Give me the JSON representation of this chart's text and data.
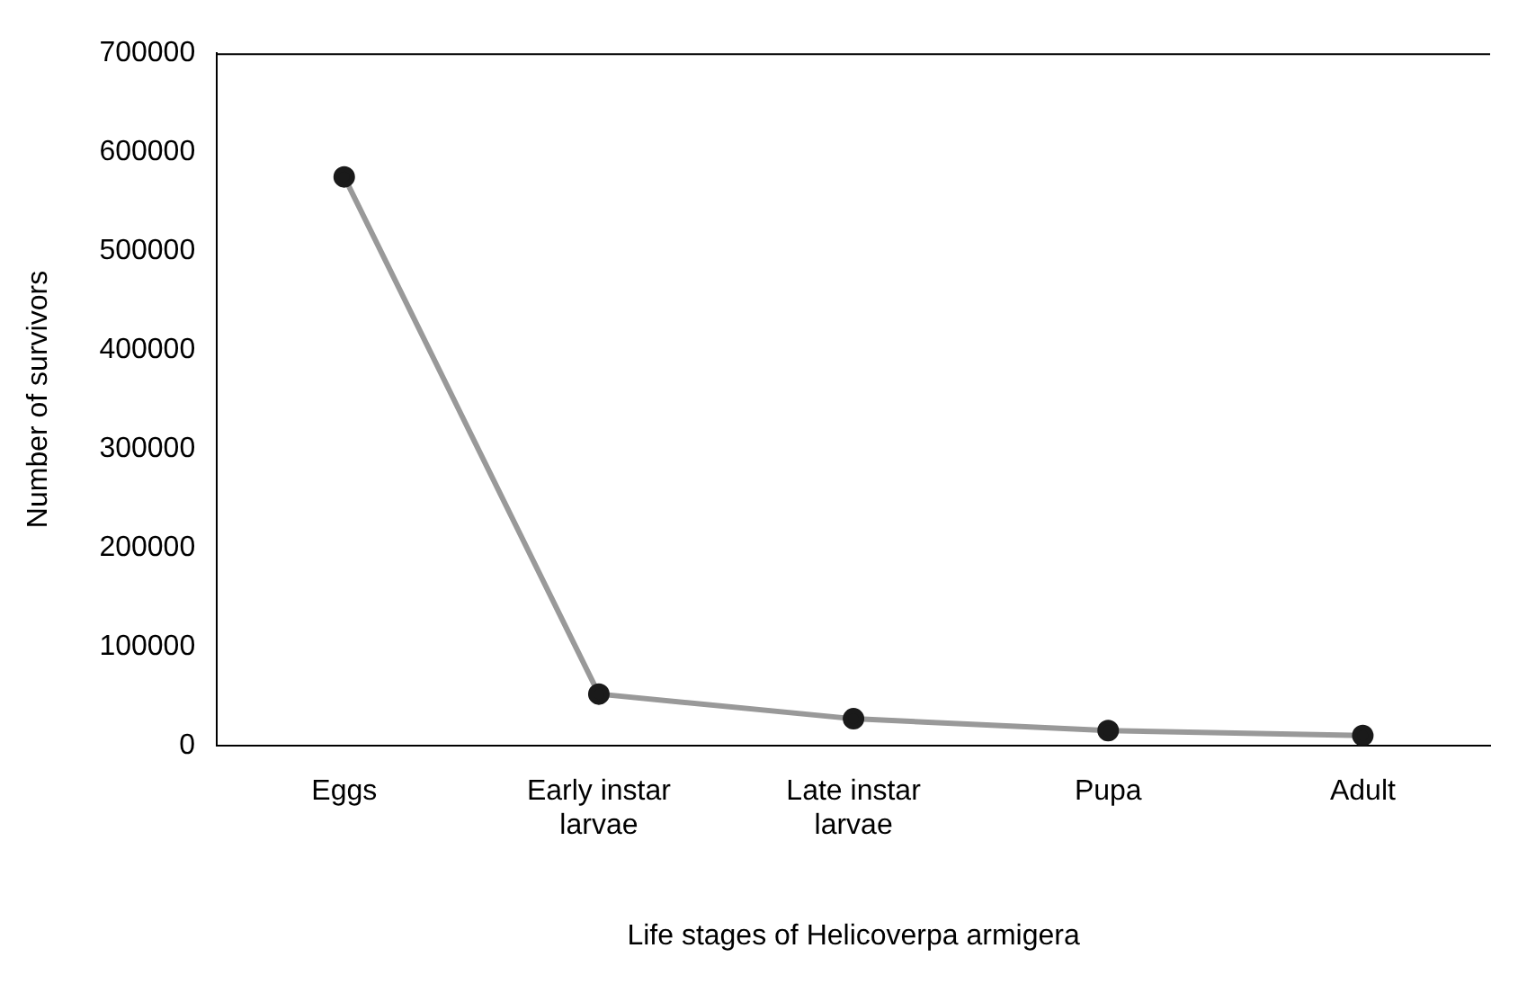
{
  "chart_data": {
    "type": "line",
    "xlabel": "Life stages of Helicoverpa armigera",
    "ylabel": "Number of survivors",
    "categories": [
      "Eggs",
      "Early instar larvae",
      "Late instar larvae",
      "Pupa",
      "Adult"
    ],
    "series": [
      {
        "color": "#999999",
        "values": [
          575000,
          52000,
          27000,
          15000,
          10000
        ]
      }
    ],
    "ylim": [
      0,
      700000
    ],
    "yticks": [
      0,
      100000,
      200000,
      300000,
      400000,
      500000,
      600000,
      700000
    ],
    "grid": false,
    "legend": false,
    "marker": "circle",
    "line_style": "solid"
  }
}
